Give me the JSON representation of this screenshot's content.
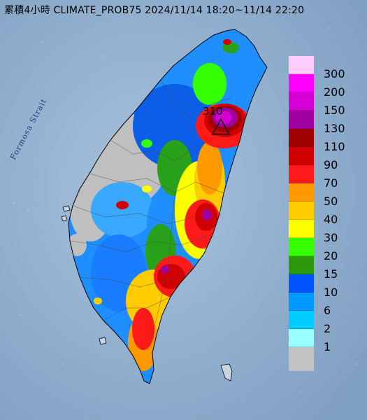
{
  "title": "累積4小時 CLIMATE_PROB75 2024/11/14 18:20~11/14 22:20",
  "strait_label": "Formosa Strait",
  "peak_label": "310",
  "legend": [
    {
      "label": "300",
      "color": "#ffccff"
    },
    {
      "label": "200",
      "color": "#ff00ff"
    },
    {
      "label": "150",
      "color": "#d400d4"
    },
    {
      "label": "130",
      "color": "#a000a0"
    },
    {
      "label": "110",
      "color": "#a00000"
    },
    {
      "label": "90",
      "color": "#d00000"
    },
    {
      "label": "70",
      "color": "#ff1a1a"
    },
    {
      "label": "50",
      "color": "#ff9900"
    },
    {
      "label": "40",
      "color": "#ffcc00"
    },
    {
      "label": "30",
      "color": "#ffff00"
    },
    {
      "label": "20",
      "color": "#33ff00"
    },
    {
      "label": "15",
      "color": "#2c9a0c"
    },
    {
      "label": "10",
      "color": "#0055ff"
    },
    {
      "label": "6",
      "color": "#0099ff"
    },
    {
      "label": "2",
      "color": "#00ccff"
    },
    {
      "label": "1",
      "color": "#99ffff"
    },
    {
      "label": "",
      "color": "#c2c2c2"
    }
  ]
}
